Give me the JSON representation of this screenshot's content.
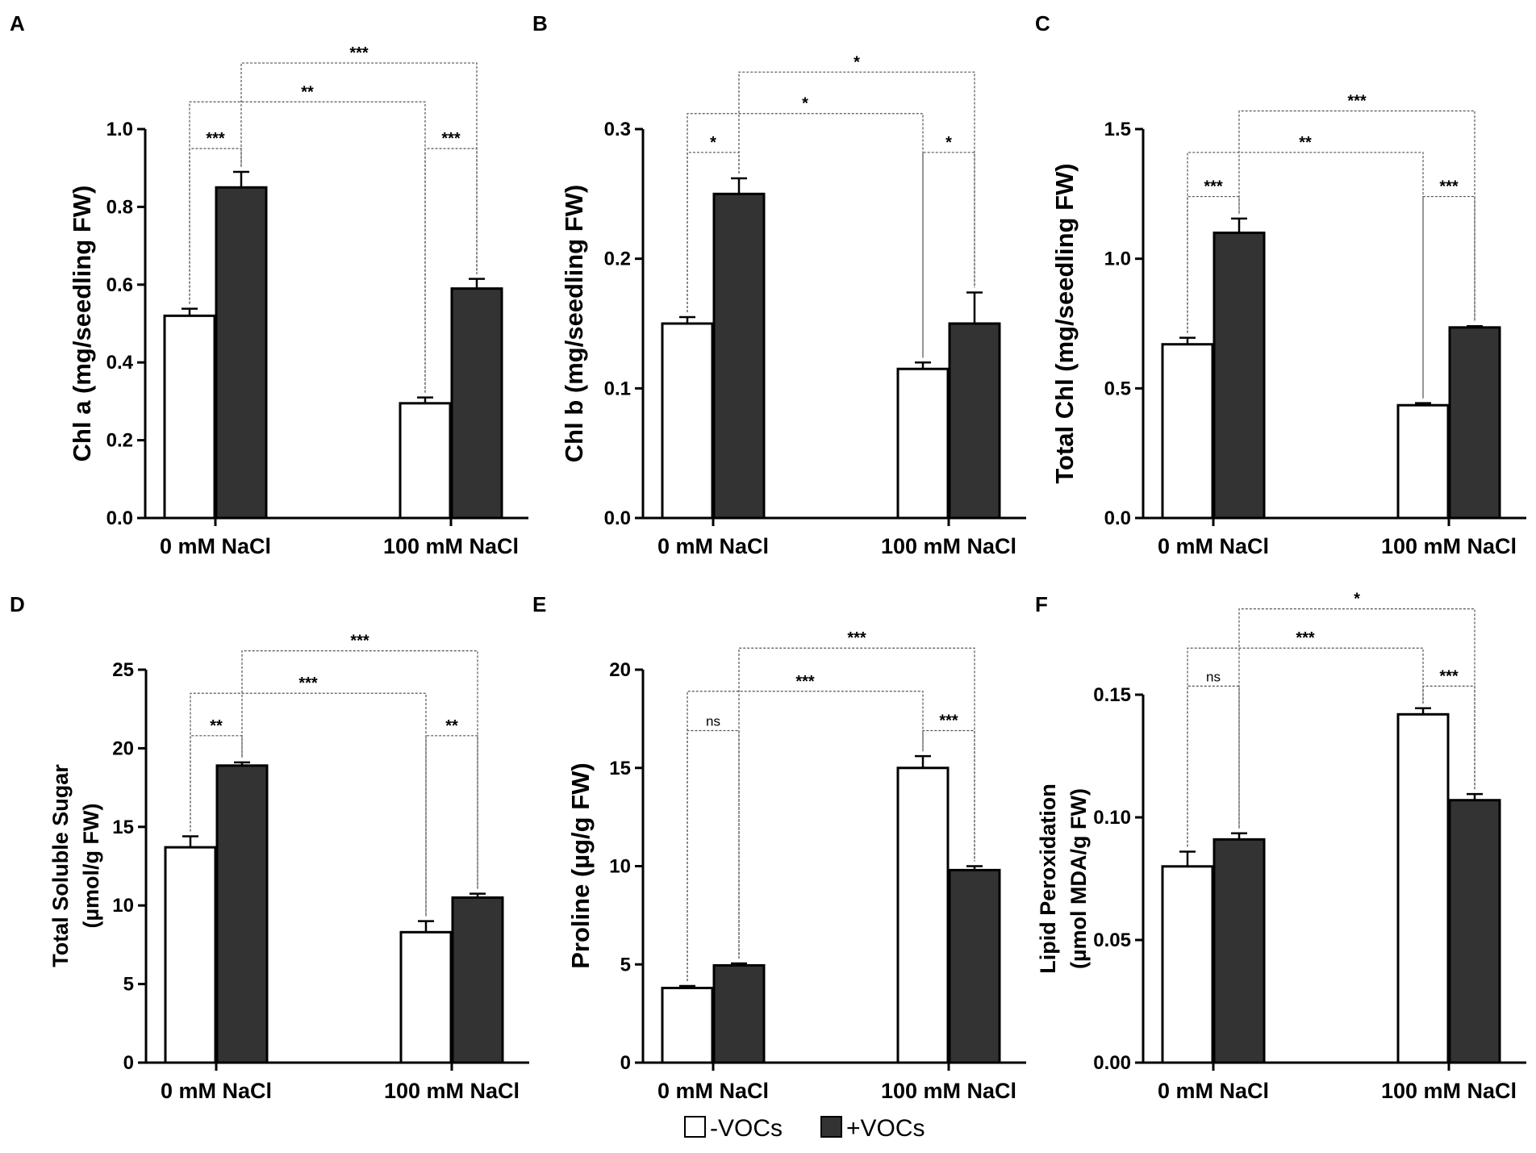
{
  "legend": {
    "items": [
      {
        "label": "-VOCs",
        "color": "#ffffff"
      },
      {
        "label": "+VOCs",
        "color": "#333333"
      }
    ]
  },
  "colors": {
    "minus": "#ffffff",
    "plus": "#333333",
    "axis": "#000000"
  },
  "chart_data": [
    {
      "panel": "A",
      "type": "bar",
      "ylabel": [
        "Chl a (mg/seedling FW)"
      ],
      "categories": [
        "0 mM NaCl",
        "100 mM NaCl"
      ],
      "ylim": [
        0,
        1.0
      ],
      "yticks": [
        "0.0",
        "0.2",
        "0.4",
        "0.6",
        "0.8",
        "1.0"
      ],
      "series": [
        {
          "name": "-VOCs",
          "values": [
            0.52,
            0.295
          ],
          "errors": [
            0.018,
            0.015
          ]
        },
        {
          "name": "+VOCs",
          "values": [
            0.85,
            0.59
          ],
          "errors": [
            0.04,
            0.025
          ]
        }
      ],
      "comparisons": [
        {
          "a": "g0s0",
          "b": "g0s1",
          "label": "***",
          "value": 0.95
        },
        {
          "a": "g1s0",
          "b": "g1s1",
          "label": "***",
          "value": 0.95
        },
        {
          "a": "g0s0",
          "b": "g1s0",
          "label": "**",
          "value": 1.07
        },
        {
          "a": "g0s1",
          "b": "g1s1",
          "label": "***",
          "value": 1.17
        }
      ]
    },
    {
      "panel": "B",
      "type": "bar",
      "ylabel": [
        "Chl b (mg/seedling FW)"
      ],
      "categories": [
        "0 mM NaCl",
        "100 mM NaCl"
      ],
      "ylim": [
        0,
        0.3
      ],
      "yticks": [
        "0.0",
        "0.1",
        "0.2",
        "0.3"
      ],
      "series": [
        {
          "name": "-VOCs",
          "values": [
            0.15,
            0.115
          ],
          "errors": [
            0.005,
            0.005
          ]
        },
        {
          "name": "+VOCs",
          "values": [
            0.25,
            0.15
          ],
          "errors": [
            0.012,
            0.024
          ]
        }
      ],
      "comparisons": [
        {
          "a": "g0s0",
          "b": "g0s1",
          "label": "*",
          "value": 0.282
        },
        {
          "a": "g1s0",
          "b": "g1s1",
          "label": "*",
          "value": 0.282
        },
        {
          "a": "g0s0",
          "b": "g1s0",
          "label": "*",
          "value": 0.312
        },
        {
          "a": "g0s1",
          "b": "g1s1",
          "label": "*",
          "value": 0.344
        }
      ]
    },
    {
      "panel": "C",
      "type": "bar",
      "ylabel": [
        "Total Chl (mg/seedling FW)"
      ],
      "categories": [
        "0 mM NaCl",
        "100 mM NaCl"
      ],
      "ylim": [
        0,
        1.5
      ],
      "yticks": [
        "0.0",
        "0.5",
        "1.0",
        "1.5"
      ],
      "series": [
        {
          "name": "-VOCs",
          "values": [
            0.67,
            0.435
          ],
          "errors": [
            0.025,
            0.008
          ]
        },
        {
          "name": "+VOCs",
          "values": [
            1.1,
            0.735
          ],
          "errors": [
            0.055,
            0.005
          ]
        }
      ],
      "comparisons": [
        {
          "a": "g0s0",
          "b": "g0s1",
          "label": "***",
          "value": 1.24
        },
        {
          "a": "g1s0",
          "b": "g1s1",
          "label": "***",
          "value": 1.24
        },
        {
          "a": "g0s0",
          "b": "g1s0",
          "label": "**",
          "value": 1.41
        },
        {
          "a": "g0s1",
          "b": "g1s1",
          "label": "***",
          "value": 1.57
        }
      ]
    },
    {
      "panel": "D",
      "type": "bar",
      "ylabel": [
        "Total Soluble Sugar",
        "(µmol/g  FW)"
      ],
      "categories": [
        "0 mM NaCl",
        "100 mM NaCl"
      ],
      "ylim": [
        0,
        25
      ],
      "yticks": [
        "0",
        "5",
        "10",
        "15",
        "20",
        "25"
      ],
      "series": [
        {
          "name": "-VOCs",
          "values": [
            13.7,
            8.3
          ],
          "errors": [
            0.7,
            0.7
          ]
        },
        {
          "name": "+VOCs",
          "values": [
            18.9,
            10.5
          ],
          "errors": [
            0.2,
            0.25
          ]
        }
      ],
      "comparisons": [
        {
          "a": "g0s0",
          "b": "g0s1",
          "label": "**",
          "value": 20.8
        },
        {
          "a": "g1s0",
          "b": "g1s1",
          "label": "**",
          "value": 20.8
        },
        {
          "a": "g0s0",
          "b": "g1s0",
          "label": "***",
          "value": 23.5
        },
        {
          "a": "g0s1",
          "b": "g1s1",
          "label": "***",
          "value": 26.2
        }
      ]
    },
    {
      "panel": "E",
      "type": "bar",
      "ylabel": [
        "Proline (µg/g FW)"
      ],
      "categories": [
        "0 mM NaCl",
        "100 mM NaCl"
      ],
      "ylim": [
        0,
        20
      ],
      "yticks": [
        "0",
        "5",
        "10",
        "15",
        "20"
      ],
      "series": [
        {
          "name": "-VOCs",
          "values": [
            3.8,
            15.0
          ],
          "errors": [
            0.1,
            0.6
          ]
        },
        {
          "name": "+VOCs",
          "values": [
            4.95,
            9.8
          ],
          "errors": [
            0.1,
            0.2
          ]
        }
      ],
      "comparisons": [
        {
          "a": "g0s0",
          "b": "g0s1",
          "label": "ns",
          "value": 16.9
        },
        {
          "a": "g1s0",
          "b": "g1s1",
          "label": "***",
          "value": 16.9
        },
        {
          "a": "g0s0",
          "b": "g1s0",
          "label": "***",
          "value": 18.9
        },
        {
          "a": "g0s1",
          "b": "g1s1",
          "label": "***",
          "value": 21.1
        }
      ]
    },
    {
      "panel": "F",
      "type": "bar",
      "ylabel": [
        "Lipid Peroxidation",
        "(µmol MDA/g FW)"
      ],
      "categories": [
        "0 mM NaCl",
        "100 mM NaCl"
      ],
      "ylim": [
        0,
        0.15
      ],
      "yticks": [
        "0.00",
        "0.05",
        "0.10",
        "0.15"
      ],
      "series": [
        {
          "name": "-VOCs",
          "values": [
            0.08,
            0.142
          ],
          "errors": [
            0.006,
            0.0025
          ]
        },
        {
          "name": "+VOCs",
          "values": [
            0.091,
            0.107
          ],
          "errors": [
            0.0025,
            0.0025
          ]
        }
      ],
      "comparisons": [
        {
          "a": "g0s0",
          "b": "g0s1",
          "label": "ns",
          "value": 0.1535
        },
        {
          "a": "g1s0",
          "b": "g1s1",
          "label": "***",
          "value": 0.1535
        },
        {
          "a": "g0s0",
          "b": "g1s0",
          "label": "***",
          "value": 0.169
        },
        {
          "a": "g0s1",
          "b": "g1s1",
          "label": "*",
          "value": 0.185
        }
      ]
    }
  ]
}
